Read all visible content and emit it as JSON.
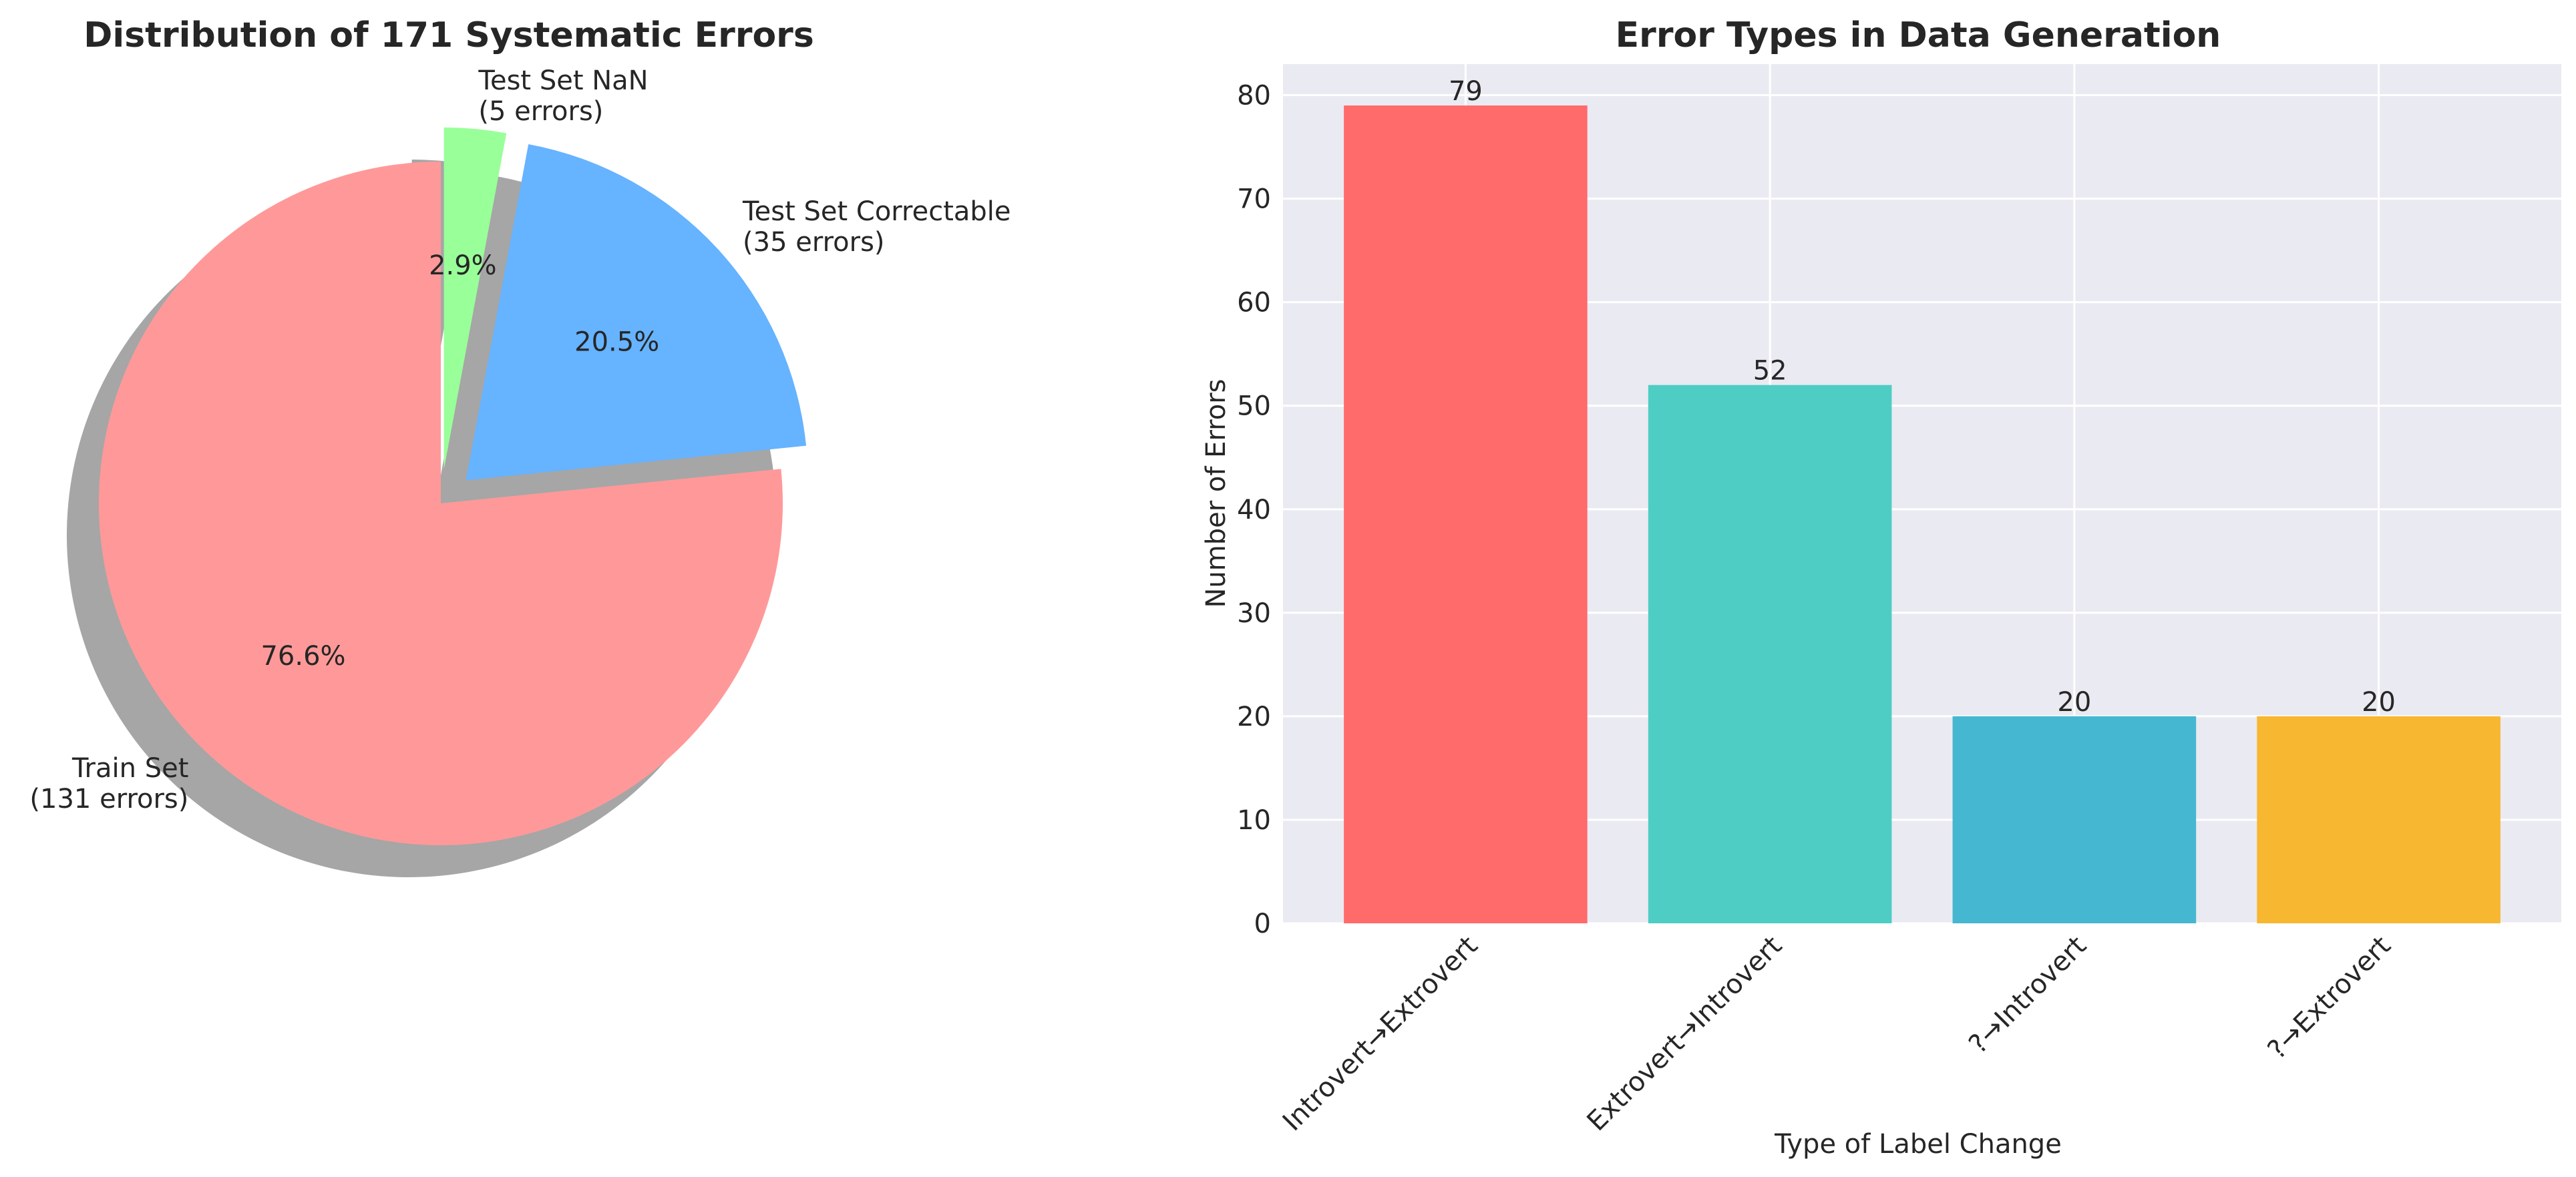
{
  "chart_data": [
    {
      "type": "pie",
      "title": "Distribution of 171 Systematic Errors",
      "slices": [
        {
          "label": "Train Set",
          "count_label": "(131 errors)",
          "value": 131,
          "pct_label": "76.6%",
          "color": "#ff9999",
          "exploded": false
        },
        {
          "label": "Test Set Correctable",
          "count_label": "(35 errors)",
          "value": 35,
          "pct_label": "20.5%",
          "color": "#66b3ff",
          "exploded": true
        },
        {
          "label": "Test Set NaN",
          "count_label": "(5 errors)",
          "value": 5,
          "pct_label": "2.9%",
          "color": "#99ff99",
          "exploded": true
        }
      ],
      "start_angle_deg": 90,
      "direction": "counterclockwise",
      "shadow": true
    },
    {
      "type": "bar",
      "title": "Error Types in Data Generation",
      "xlabel": "Type of Label Change",
      "ylabel": "Number of Errors",
      "categories": [
        "Introvert→Extrovert",
        "Extrovert→Introvert",
        "?→Introvert",
        "?→Extrovert"
      ],
      "values": [
        79,
        52,
        20,
        20
      ],
      "value_labels": [
        "79",
        "52",
        "20",
        "20"
      ],
      "colors": [
        "#ff6b6b",
        "#4ecdc4",
        "#45b7d1",
        "#f7b731"
      ],
      "ylim": [
        0,
        83
      ],
      "yticks": [
        "0",
        "10",
        "20",
        "30",
        "40",
        "50",
        "60",
        "70",
        "80"
      ],
      "grid": true,
      "background": "#eaeaf2"
    }
  ]
}
